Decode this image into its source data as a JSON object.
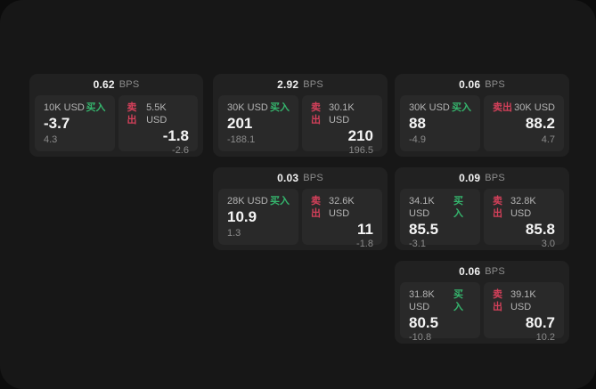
{
  "labels": {
    "bps": "BPS",
    "buy": "买入",
    "sell": "卖出"
  },
  "colors": {
    "buy_green": "#35b56d",
    "sell_red": "#d4405a",
    "window_bg": "#171717",
    "card_bg": "#212121",
    "panel_bg": "#292929"
  },
  "cards": [
    {
      "bps": "0.62",
      "buy": {
        "amount": "10K USD",
        "price": "-3.7",
        "delta": "4.3"
      },
      "sell": {
        "amount": "5.5K USD",
        "price": "-1.8",
        "delta": "-2.6"
      }
    },
    {
      "bps": "2.92",
      "buy": {
        "amount": "30K USD",
        "price": "201",
        "delta": "-188.1"
      },
      "sell": {
        "amount": "30.1K USD",
        "price": "210",
        "delta": "196.5"
      }
    },
    {
      "bps": "0.06",
      "buy": {
        "amount": "30K USD",
        "price": "88",
        "delta": "-4.9"
      },
      "sell": {
        "amount": "30K USD",
        "price": "88.2",
        "delta": "4.7"
      }
    },
    {
      "bps": "0.03",
      "buy": {
        "amount": "28K USD",
        "price": "10.9",
        "delta": "1.3"
      },
      "sell": {
        "amount": "32.6K USD",
        "price": "11",
        "delta": "-1.8"
      }
    },
    {
      "bps": "0.09",
      "buy": {
        "amount": "34.1K USD",
        "price": "85.5",
        "delta": "-3.1"
      },
      "sell": {
        "amount": "32.8K USD",
        "price": "85.8",
        "delta": "3.0"
      }
    },
    {
      "bps": "0.06",
      "buy": {
        "amount": "31.8K USD",
        "price": "80.5",
        "delta": "-10.8"
      },
      "sell": {
        "amount": "39.1K USD",
        "price": "80.7",
        "delta": "10.2"
      }
    }
  ]
}
